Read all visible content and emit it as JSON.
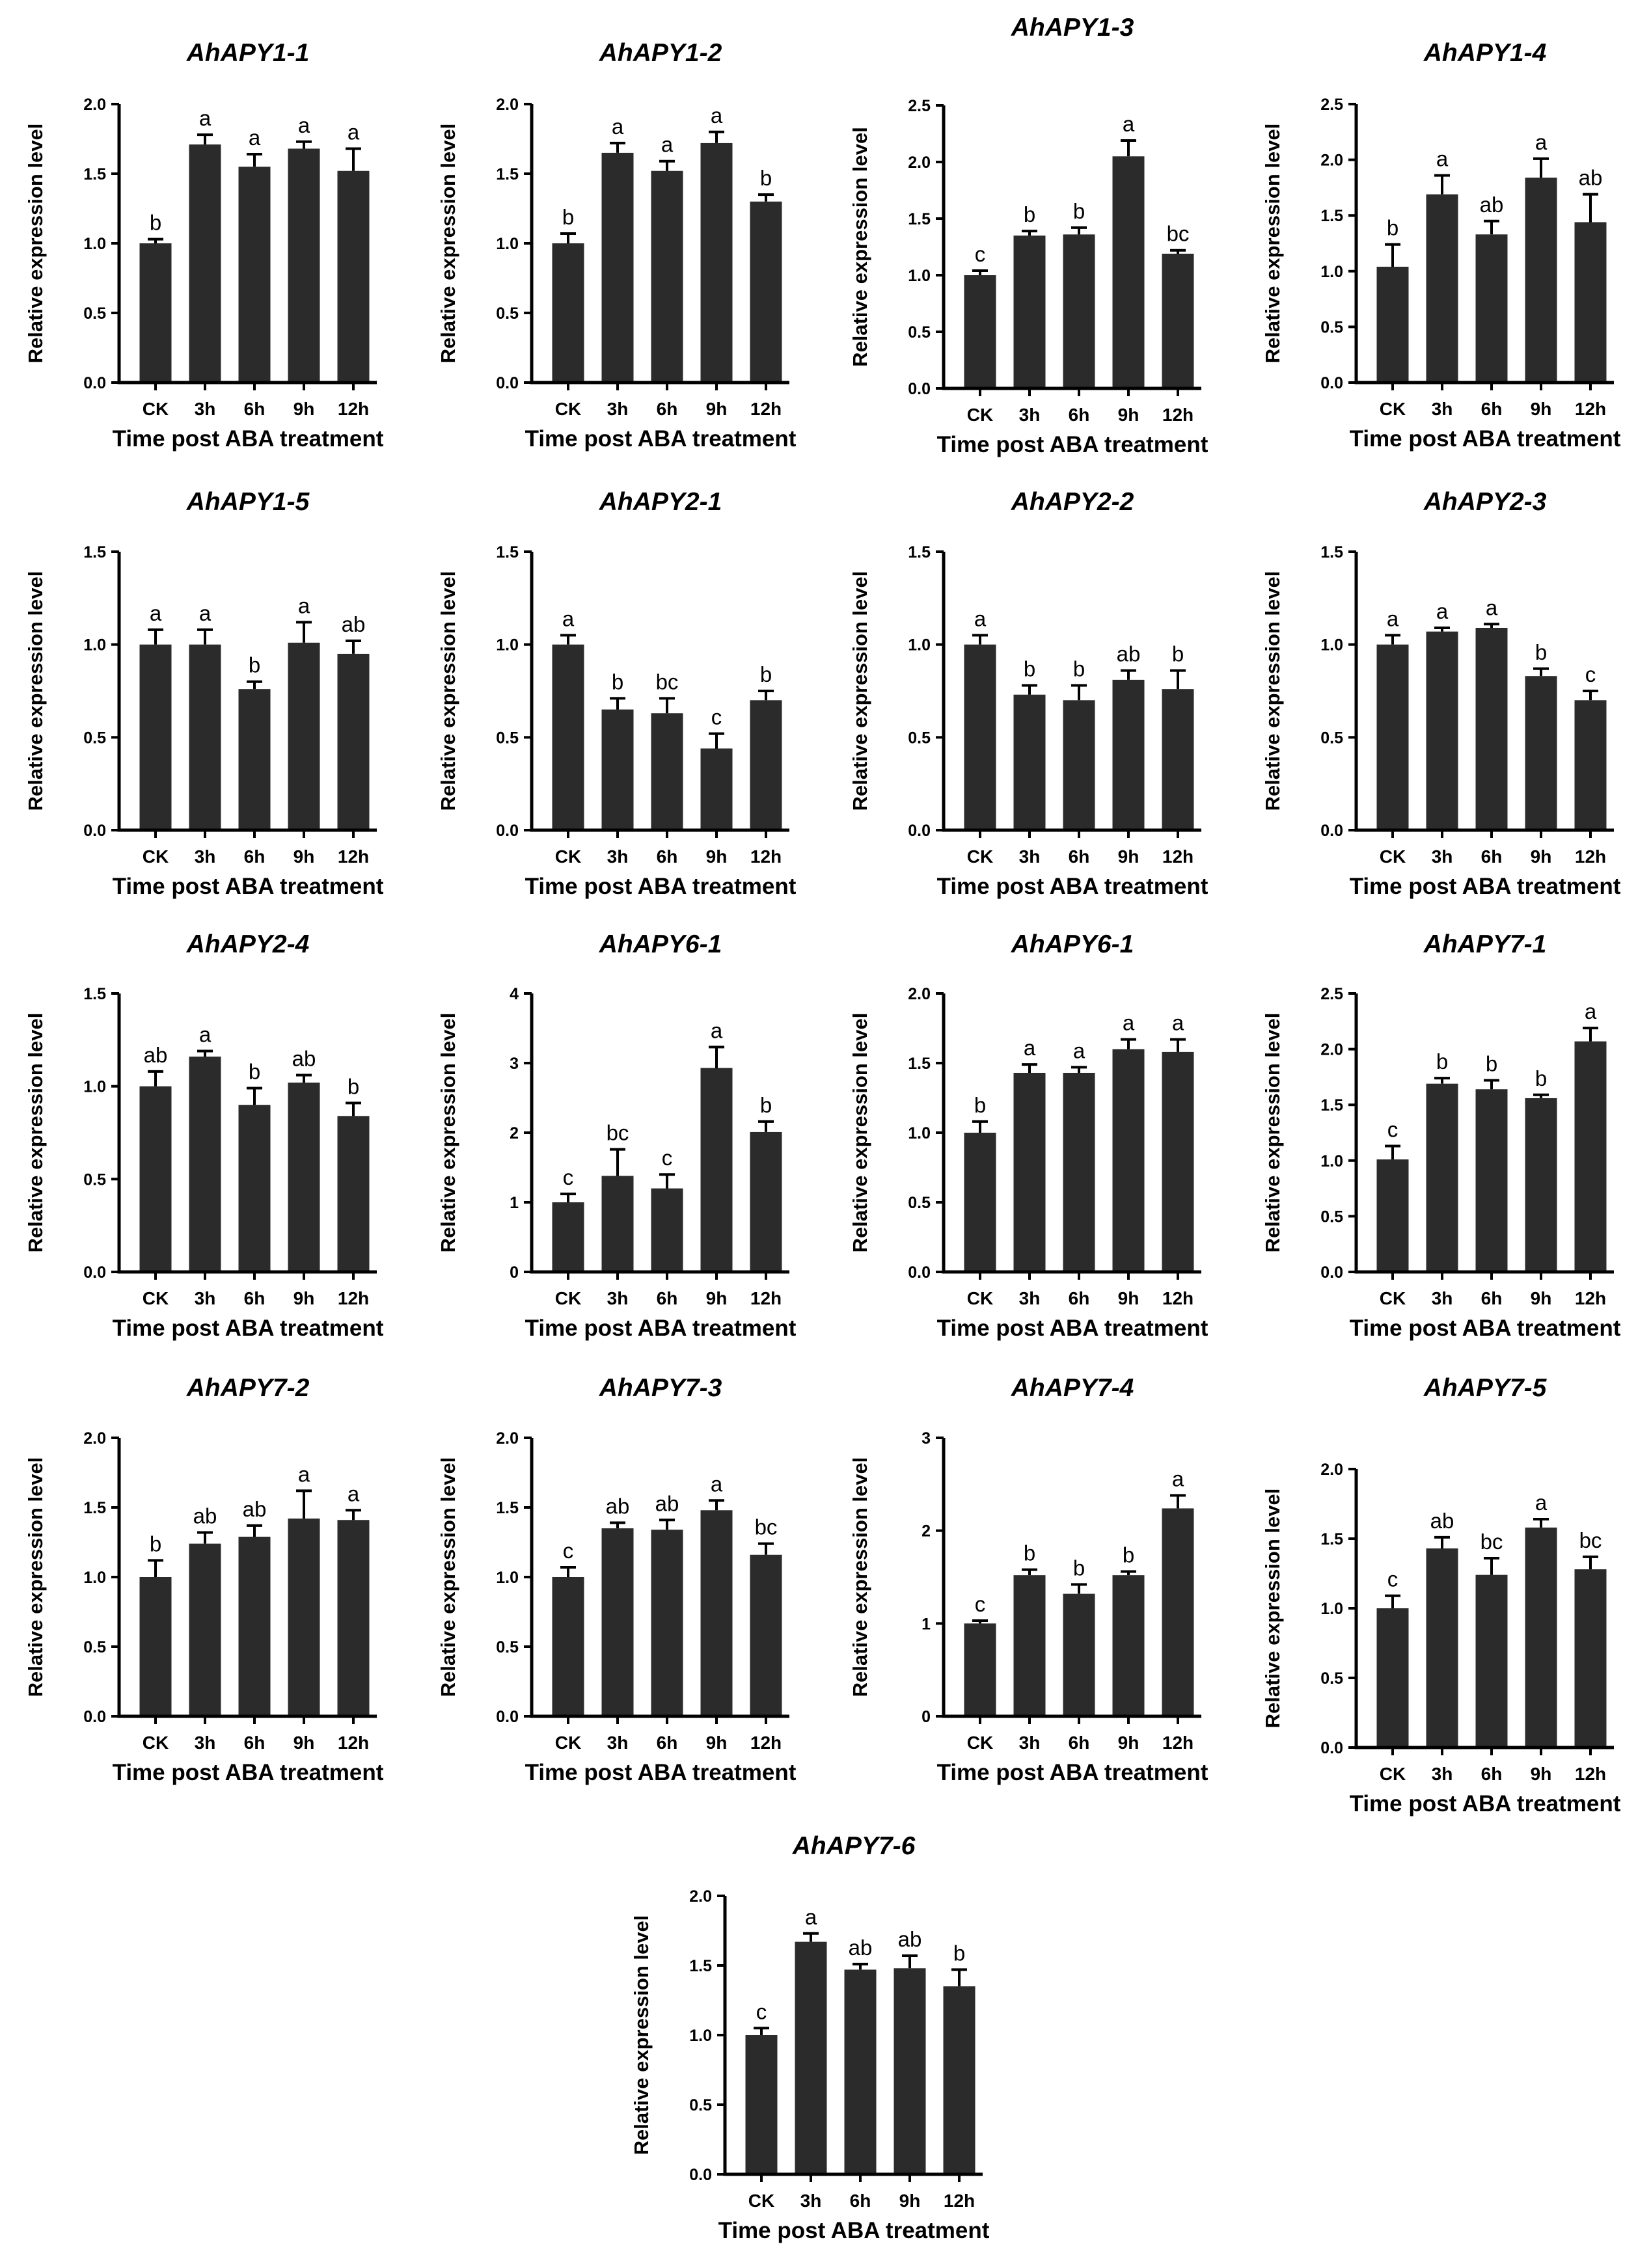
{
  "chart_data": [
    {
      "type": "bar",
      "title": "AhAPY1-1",
      "xlabel": "Time post ABA treatment",
      "ylabel": "Relative expression level",
      "categories": [
        "CK",
        "3h",
        "6h",
        "9h",
        "12h"
      ],
      "values": [
        1.0,
        1.71,
        1.55,
        1.68,
        1.52
      ],
      "errors": [
        0.03,
        0.07,
        0.09,
        0.05,
        0.16
      ],
      "letters": [
        "b",
        "a",
        "a",
        "a",
        "a"
      ],
      "ylim": [
        0,
        2.0
      ],
      "yticks": [
        "0.0",
        "0.5",
        "1.0",
        "1.5",
        "2.0"
      ]
    },
    {
      "type": "bar",
      "title": "AhAPY1-2",
      "xlabel": "Time post ABA treatment",
      "ylabel": "Relative expression level",
      "categories": [
        "CK",
        "3h",
        "6h",
        "9h",
        "12h"
      ],
      "values": [
        1.0,
        1.65,
        1.52,
        1.72,
        1.3
      ],
      "errors": [
        0.07,
        0.07,
        0.07,
        0.08,
        0.05
      ],
      "letters": [
        "b",
        "a",
        "a",
        "a",
        "b"
      ],
      "ylim": [
        0,
        2.0
      ],
      "yticks": [
        "0.0",
        "0.5",
        "1.0",
        "1.5",
        "2.0"
      ]
    },
    {
      "type": "bar",
      "title": "AhAPY1-3",
      "xlabel": "Time post ABA treatment",
      "ylabel": "Relative expression level",
      "categories": [
        "CK",
        "3h",
        "6h",
        "9h",
        "12h"
      ],
      "values": [
        1.0,
        1.35,
        1.36,
        2.05,
        1.19
      ],
      "errors": [
        0.04,
        0.04,
        0.06,
        0.14,
        0.03
      ],
      "letters": [
        "c",
        "b",
        "b",
        "a",
        "bc"
      ],
      "ylim": [
        0,
        2.5
      ],
      "yticks": [
        "0.0",
        "0.5",
        "1.0",
        "1.5",
        "2.0",
        "2.5"
      ]
    },
    {
      "type": "bar",
      "title": "AhAPY1-4",
      "xlabel": "Time post ABA treatment",
      "ylabel": "Relative expression level",
      "categories": [
        "CK",
        "3h",
        "6h",
        "9h",
        "12h"
      ],
      "values": [
        1.04,
        1.69,
        1.33,
        1.84,
        1.44
      ],
      "errors": [
        0.2,
        0.17,
        0.12,
        0.17,
        0.25
      ],
      "letters": [
        "b",
        "a",
        "ab",
        "a",
        "ab"
      ],
      "ylim": [
        0,
        2.5
      ],
      "yticks": [
        "0.0",
        "0.5",
        "1.0",
        "1.5",
        "2.0",
        "2.5"
      ]
    },
    {
      "type": "bar",
      "title": "AhAPY1-5",
      "xlabel": "Time post ABA treatment",
      "ylabel": "Relative expression level",
      "categories": [
        "CK",
        "3h",
        "6h",
        "9h",
        "12h"
      ],
      "values": [
        1.0,
        1.0,
        0.76,
        1.01,
        0.95
      ],
      "errors": [
        0.08,
        0.08,
        0.04,
        0.11,
        0.07
      ],
      "letters": [
        "a",
        "a",
        "b",
        "a",
        "ab"
      ],
      "ylim": [
        0,
        1.5
      ],
      "yticks": [
        "0.0",
        "0.5",
        "1.0",
        "1.5"
      ]
    },
    {
      "type": "bar",
      "title": "AhAPY2-1",
      "xlabel": "Time post ABA treatment",
      "ylabel": "Relative expression level",
      "categories": [
        "CK",
        "3h",
        "6h",
        "9h",
        "12h"
      ],
      "values": [
        1.0,
        0.65,
        0.63,
        0.44,
        0.7
      ],
      "errors": [
        0.05,
        0.06,
        0.08,
        0.08,
        0.05
      ],
      "letters": [
        "a",
        "b",
        "bc",
        "c",
        "b"
      ],
      "ylim": [
        0,
        1.5
      ],
      "yticks": [
        "0.0",
        "0.5",
        "1.0",
        "1.5"
      ]
    },
    {
      "type": "bar",
      "title": "AhAPY2-2",
      "xlabel": "Time post ABA treatment",
      "ylabel": "Relative expression level",
      "categories": [
        "CK",
        "3h",
        "6h",
        "9h",
        "12h"
      ],
      "values": [
        1.0,
        0.73,
        0.7,
        0.81,
        0.76
      ],
      "errors": [
        0.05,
        0.05,
        0.08,
        0.05,
        0.1
      ],
      "letters": [
        "a",
        "b",
        "b",
        "ab",
        "b"
      ],
      "ylim": [
        0,
        1.5
      ],
      "yticks": [
        "0.0",
        "0.5",
        "1.0",
        "1.5"
      ]
    },
    {
      "type": "bar",
      "title": "AhAPY2-3",
      "xlabel": "Time post ABA treatment",
      "ylabel": "Relative expression level",
      "categories": [
        "CK",
        "3h",
        "6h",
        "9h",
        "12h"
      ],
      "values": [
        1.0,
        1.07,
        1.09,
        0.83,
        0.7
      ],
      "errors": [
        0.05,
        0.02,
        0.02,
        0.04,
        0.05
      ],
      "letters": [
        "a",
        "a",
        "a",
        "b",
        "c"
      ],
      "ylim": [
        0,
        1.5
      ],
      "yticks": [
        "0.0",
        "0.5",
        "1.0",
        "1.5"
      ]
    },
    {
      "type": "bar",
      "title": "AhAPY2-4",
      "xlabel": "Time post ABA treatment",
      "ylabel": "Relative expression level",
      "categories": [
        "CK",
        "3h",
        "6h",
        "9h",
        "12h"
      ],
      "values": [
        1.0,
        1.16,
        0.9,
        1.02,
        0.84
      ],
      "errors": [
        0.08,
        0.03,
        0.09,
        0.04,
        0.07
      ],
      "letters": [
        "ab",
        "a",
        "b",
        "ab",
        "b"
      ],
      "ylim": [
        0,
        1.5
      ],
      "yticks": [
        "0.0",
        "0.5",
        "1.0",
        "1.5"
      ]
    },
    {
      "type": "bar",
      "title": "AhAPY6-1",
      "xlabel": "Time post ABA treatment",
      "ylabel": "Relative expression level",
      "categories": [
        "CK",
        "3h",
        "6h",
        "9h",
        "12h"
      ],
      "values": [
        1.0,
        1.38,
        1.2,
        2.93,
        2.01
      ],
      "errors": [
        0.12,
        0.38,
        0.2,
        0.3,
        0.15
      ],
      "letters": [
        "c",
        "bc",
        "c",
        "a",
        "b"
      ],
      "ylim": [
        0,
        4
      ],
      "yticks": [
        "0",
        "1",
        "2",
        "3",
        "4"
      ]
    },
    {
      "type": "bar",
      "title": "AhAPY6-1",
      "xlabel": "Time post ABA treatment",
      "ylabel": "Relative expression level",
      "categories": [
        "CK",
        "3h",
        "6h",
        "9h",
        "12h"
      ],
      "values": [
        1.0,
        1.43,
        1.43,
        1.6,
        1.58
      ],
      "errors": [
        0.08,
        0.06,
        0.04,
        0.07,
        0.09
      ],
      "letters": [
        "b",
        "a",
        "a",
        "a",
        "a"
      ],
      "ylim": [
        0,
        2.0
      ],
      "yticks": [
        "0.0",
        "0.5",
        "1.0",
        "1.5",
        "2.0"
      ]
    },
    {
      "type": "bar",
      "title": "AhAPY7-1",
      "xlabel": "Time post ABA treatment",
      "ylabel": "Relative expression level",
      "categories": [
        "CK",
        "3h",
        "6h",
        "9h",
        "12h"
      ],
      "values": [
        1.01,
        1.69,
        1.64,
        1.56,
        2.07
      ],
      "errors": [
        0.12,
        0.05,
        0.08,
        0.03,
        0.12
      ],
      "letters": [
        "c",
        "b",
        "b",
        "b",
        "a"
      ],
      "ylim": [
        0,
        2.5
      ],
      "yticks": [
        "0.0",
        "0.5",
        "1.0",
        "1.5",
        "2.0",
        "2.5"
      ]
    },
    {
      "type": "bar",
      "title": "AhAPY7-2",
      "xlabel": "Time post ABA treatment",
      "ylabel": "Relative expression level",
      "categories": [
        "CK",
        "3h",
        "6h",
        "9h",
        "12h"
      ],
      "values": [
        1.0,
        1.24,
        1.29,
        1.42,
        1.41
      ],
      "errors": [
        0.12,
        0.08,
        0.08,
        0.2,
        0.07
      ],
      "letters": [
        "b",
        "ab",
        "ab",
        "a",
        "a"
      ],
      "ylim": [
        0,
        2.0
      ],
      "yticks": [
        "0.0",
        "0.5",
        "1.0",
        "1.5",
        "2.0"
      ]
    },
    {
      "type": "bar",
      "title": "AhAPY7-3",
      "xlabel": "Time post ABA treatment",
      "ylabel": "Relative expression level",
      "categories": [
        "CK",
        "3h",
        "6h",
        "9h",
        "12h"
      ],
      "values": [
        1.0,
        1.35,
        1.34,
        1.48,
        1.16
      ],
      "errors": [
        0.07,
        0.04,
        0.07,
        0.07,
        0.08
      ],
      "letters": [
        "c",
        "ab",
        "ab",
        "a",
        "bc"
      ],
      "ylim": [
        0,
        2.0
      ],
      "yticks": [
        "0.0",
        "0.5",
        "1.0",
        "1.5",
        "2.0"
      ]
    },
    {
      "type": "bar",
      "title": "AhAPY7-4",
      "xlabel": "Time post ABA treatment",
      "ylabel": "Relative expression level",
      "categories": [
        "CK",
        "3h",
        "6h",
        "9h",
        "12h"
      ],
      "values": [
        1.0,
        1.52,
        1.32,
        1.52,
        2.24
      ],
      "errors": [
        0.03,
        0.06,
        0.1,
        0.04,
        0.14
      ],
      "letters": [
        "c",
        "b",
        "b",
        "b",
        "a"
      ],
      "ylim": [
        0,
        3
      ],
      "yticks": [
        "0",
        "1",
        "2",
        "3"
      ]
    },
    {
      "type": "bar",
      "title": "AhAPY7-5",
      "xlabel": "Time post ABA treatment",
      "ylabel": "Relative expression level",
      "categories": [
        "CK",
        "3h",
        "6h",
        "9h",
        "12h"
      ],
      "values": [
        1.0,
        1.43,
        1.24,
        1.58,
        1.28
      ],
      "errors": [
        0.09,
        0.08,
        0.12,
        0.06,
        0.09
      ],
      "letters": [
        "c",
        "ab",
        "bc",
        "a",
        "bc"
      ],
      "ylim": [
        0,
        2.0
      ],
      "yticks": [
        "0.0",
        "0.5",
        "1.0",
        "1.5",
        "2.0"
      ]
    },
    {
      "type": "bar",
      "title": "AhAPY7-6",
      "xlabel": "Time post ABA treatment",
      "ylabel": "Relative expression level",
      "categories": [
        "CK",
        "3h",
        "6h",
        "9h",
        "12h"
      ],
      "values": [
        1.0,
        1.67,
        1.47,
        1.48,
        1.35
      ],
      "errors": [
        0.05,
        0.06,
        0.04,
        0.09,
        0.12
      ],
      "letters": [
        "c",
        "a",
        "ab",
        "ab",
        "b"
      ],
      "ylim": [
        0,
        2.0
      ],
      "yticks": [
        "0.0",
        "0.5",
        "1.0",
        "1.5",
        "2.0"
      ]
    }
  ]
}
